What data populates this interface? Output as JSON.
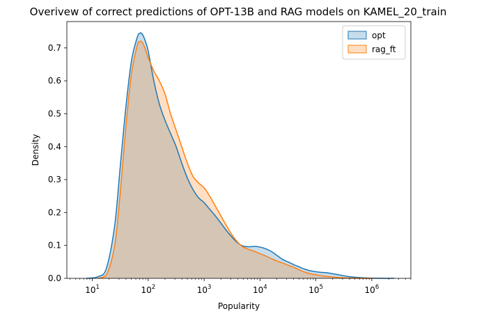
{
  "chart_data": {
    "type": "area",
    "title": "Overivew of correct predictions of OPT-13B and RAG models on KAMEL_20_train",
    "xlabel": "Popularity",
    "ylabel": "Density",
    "xscale": "log",
    "xlim": [
      3.5,
      5000000
    ],
    "ylim": [
      0,
      0.78
    ],
    "yticks": [
      0.0,
      0.1,
      0.2,
      0.3,
      0.4,
      0.5,
      0.6,
      0.7
    ],
    "ytick_labels": [
      "0.0",
      "0.1",
      "0.2",
      "0.3",
      "0.4",
      "0.5",
      "0.6",
      "0.7"
    ],
    "xticks": [
      {
        "value": 10,
        "base": "10",
        "exp": "1"
      },
      {
        "value": 100,
        "base": "10",
        "exp": "2"
      },
      {
        "value": 1000,
        "base": "10",
        "exp": "3"
      },
      {
        "value": 10000,
        "base": "10",
        "exp": "4"
      },
      {
        "value": 100000,
        "base": "10",
        "exp": "5"
      },
      {
        "value": 1000000,
        "base": "10",
        "exp": "6"
      }
    ],
    "grid": false,
    "legend_position": "top-right",
    "series": [
      {
        "name": "opt",
        "color": "#1f77b4",
        "fill": "rgba(31,119,180,0.25)",
        "x": [
          7.9,
          12.6,
          17.8,
          25.1,
          31.6,
          39.8,
          50.1,
          63.1,
          70.8,
          79.4,
          89.1,
          100,
          126,
          158,
          200,
          251,
          316,
          398,
          501,
          631,
          794,
          1000,
          1259,
          1585,
          1995,
          2512,
          3162,
          3981,
          5012,
          6310,
          7943,
          10000,
          12589,
          15849,
          19953,
          25119,
          31623,
          39811,
          50119,
          63096,
          79433,
          100000,
          125893,
          158489,
          199526,
          251189,
          316228,
          398107,
          630957,
          1000000,
          1584893,
          2511886
        ],
        "y": [
          0.0,
          0.005,
          0.03,
          0.16,
          0.34,
          0.52,
          0.66,
          0.73,
          0.745,
          0.74,
          0.72,
          0.69,
          0.6,
          0.53,
          0.48,
          0.44,
          0.4,
          0.35,
          0.305,
          0.27,
          0.245,
          0.23,
          0.21,
          0.19,
          0.168,
          0.145,
          0.125,
          0.108,
          0.098,
          0.096,
          0.097,
          0.095,
          0.09,
          0.082,
          0.07,
          0.058,
          0.05,
          0.042,
          0.035,
          0.028,
          0.023,
          0.02,
          0.018,
          0.017,
          0.014,
          0.011,
          0.008,
          0.005,
          0.002,
          0.0005,
          0.0001,
          0.0
        ]
      },
      {
        "name": "rag_ft",
        "color": "#ff7f0e",
        "fill": "rgba(255,127,14,0.25)",
        "x": [
          12.6,
          17.8,
          25.1,
          31.6,
          39.8,
          50.1,
          63.1,
          70.8,
          79.4,
          89.1,
          100,
          126,
          158,
          200,
          251,
          316,
          398,
          501,
          631,
          794,
          1000,
          1259,
          1585,
          1995,
          2512,
          3162,
          3981,
          5012,
          6310,
          7943,
          10000,
          12589,
          15849,
          19953,
          25119,
          31623,
          39811,
          50119,
          63096,
          79433,
          100000,
          125893,
          158489,
          199526,
          251189,
          398107,
          630957,
          1000000
        ],
        "y": [
          0.0,
          0.01,
          0.1,
          0.26,
          0.46,
          0.62,
          0.705,
          0.72,
          0.715,
          0.695,
          0.67,
          0.63,
          0.6,
          0.56,
          0.5,
          0.45,
          0.4,
          0.35,
          0.31,
          0.29,
          0.275,
          0.25,
          0.22,
          0.19,
          0.16,
          0.132,
          0.11,
          0.095,
          0.088,
          0.082,
          0.075,
          0.068,
          0.06,
          0.053,
          0.047,
          0.04,
          0.034,
          0.026,
          0.019,
          0.014,
          0.011,
          0.008,
          0.006,
          0.004,
          0.0025,
          0.001,
          0.0003,
          0.0
        ]
      }
    ]
  }
}
